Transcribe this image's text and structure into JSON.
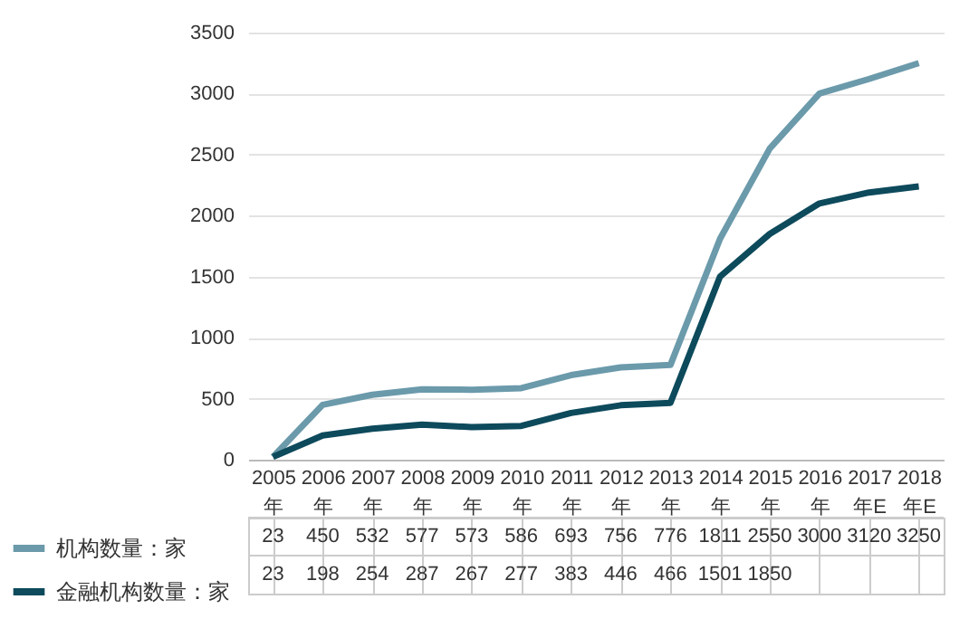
{
  "chart_data": {
    "type": "line",
    "categories": [
      "2005年",
      "2006年",
      "2007年",
      "2008年",
      "2009年",
      "2010年",
      "2011年",
      "2012年",
      "2013年",
      "2014年",
      "2015年",
      "2016年",
      "2017年E",
      "2018年E"
    ],
    "series": [
      {
        "name": "机构数量：家",
        "color": "#6b9aab",
        "values": [
          23,
          450,
          532,
          577,
          573,
          586,
          693,
          756,
          776,
          1811,
          2550,
          3000,
          3120,
          3250
        ],
        "value_labels": [
          "23",
          "450",
          "532",
          "577",
          "573",
          "586",
          "693",
          "756",
          "776",
          "1811",
          "2550",
          "3000",
          "3120",
          "3250"
        ]
      },
      {
        "name": "金融机构数量：家",
        "color": "#0d4a5c",
        "values": [
          23,
          198,
          254,
          287,
          267,
          277,
          383,
          446,
          466,
          1501,
          1850,
          2100,
          2190,
          2240
        ],
        "value_labels": [
          "23",
          "198",
          "254",
          "287",
          "267",
          "277",
          "383",
          "446",
          "466",
          "1501",
          "1850",
          null,
          null,
          null
        ]
      }
    ],
    "ylim": [
      0,
      3500
    ],
    "yticks": [
      0,
      500,
      1000,
      1500,
      2000,
      2500,
      3000,
      3500
    ],
    "grid": "y",
    "legend": "bottom left",
    "marker": "none",
    "line_style": "solid"
  }
}
